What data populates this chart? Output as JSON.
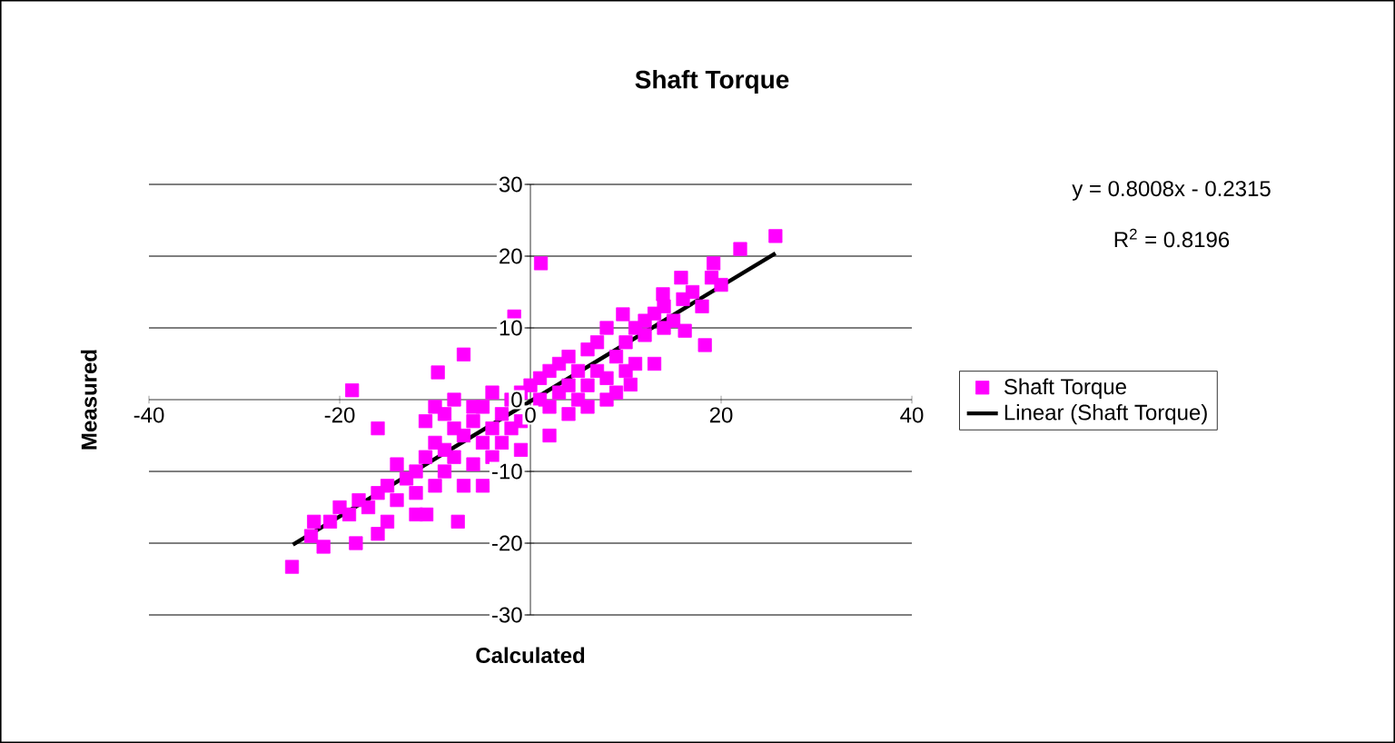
{
  "chart_data": {
    "type": "scatter",
    "title": "Shaft Torque",
    "xlabel": "Calculated",
    "ylabel": "Measured",
    "xlim": [
      -40,
      40
    ],
    "xticks": [
      -40,
      -20,
      0,
      20,
      40
    ],
    "ylim": [
      -30,
      30
    ],
    "yticks": [
      -30,
      -20,
      -10,
      0,
      10,
      20,
      30
    ],
    "grid": "y",
    "legend": "right",
    "annotations": [
      "y = 0.8008x - 0.2315",
      "R$^{2}$ = 0.8196"
    ],
    "series": [
      {
        "name": "Shaft Torque",
        "marker": "square",
        "color": "#ff00ff",
        "x": [
          1.1,
          -1.7,
          -7,
          -9.7,
          -18.7,
          -16,
          -25,
          -21.7,
          -18.3,
          -16,
          -22.7,
          -10.9,
          -7.6,
          18.3,
          25.7,
          22,
          19.2,
          15.8,
          13.9,
          16.2,
          13,
          10.5,
          9.7,
          -23,
          -21,
          -20,
          -19,
          -18,
          -17,
          -16,
          -15,
          -14,
          -13,
          -14,
          -12,
          -11,
          -12,
          -10,
          -9,
          -10,
          -9,
          -8,
          -8,
          -7,
          -6,
          -7,
          -6,
          -5,
          -5,
          -4,
          -4,
          -3,
          -3,
          -2,
          -2,
          -1,
          -1,
          0,
          1,
          1,
          2,
          2,
          3,
          3,
          4,
          4,
          5,
          5,
          6,
          6,
          7,
          7,
          8,
          8,
          9,
          9,
          10,
          10,
          11,
          11,
          12,
          12,
          13,
          14,
          14,
          15,
          16,
          17,
          18,
          19,
          20,
          -5,
          -8,
          -6,
          -4,
          -1,
          2,
          4,
          6,
          8,
          -15,
          -12,
          -11,
          -10,
          -9
        ],
        "values": [
          19,
          11.6,
          6.3,
          3.8,
          1.3,
          -4,
          -23.3,
          -20.5,
          -20,
          -18.7,
          -17,
          -16,
          -17,
          7.6,
          22.8,
          21,
          19,
          17,
          14.7,
          9.6,
          5,
          2.1,
          11.9,
          -19,
          -17,
          -15,
          -16,
          -14,
          -15,
          -13,
          -12,
          -14,
          -11,
          -9,
          -10,
          -8,
          -13,
          -12,
          -10,
          -6,
          -7,
          -4,
          -8,
          -12,
          -9,
          -5,
          -3,
          -6,
          -1,
          -4,
          -8,
          -2,
          -6,
          0,
          -4,
          -3,
          1,
          2,
          0,
          3,
          -1,
          4,
          1,
          5,
          2,
          6,
          0,
          4,
          2,
          7,
          4,
          8,
          3,
          10,
          6,
          1,
          8,
          4,
          10,
          5,
          9,
          11,
          12,
          10,
          13,
          11,
          14,
          15,
          13,
          17,
          16,
          -12,
          0,
          -1,
          1,
          -7,
          -5,
          -2,
          -1,
          0,
          -17,
          -16,
          -3,
          -1,
          -2
        ]
      },
      {
        "name": "Linear (Shaft Torque)",
        "type": "line",
        "color": "#000000",
        "x": [
          -24.9,
          25.7
        ],
        "values": [
          -20.2,
          20.4
        ]
      }
    ]
  }
}
